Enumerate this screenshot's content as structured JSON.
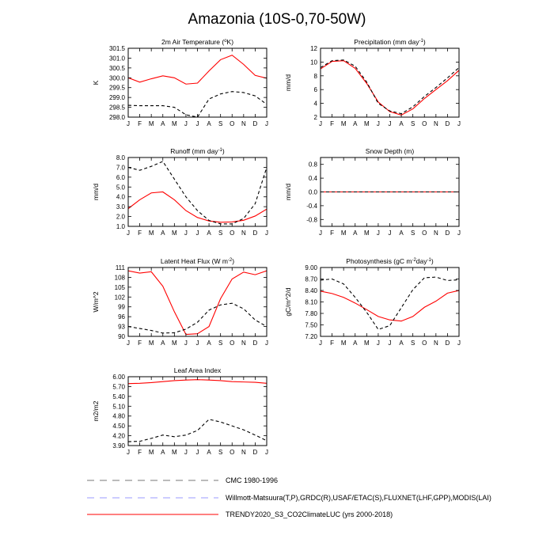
{
  "figure_title": "Amazonia (10S-0,70-50W)",
  "months": [
    "J",
    "F",
    "M",
    "A",
    "M",
    "J",
    "J",
    "A",
    "S",
    "O",
    "N",
    "D",
    "J"
  ],
  "colors": {
    "trendy": "#ff0000",
    "cmc": "#000000",
    "willmott": "#9999ff",
    "legend_cmc": "#777777"
  },
  "legend": [
    {
      "name": "cmc",
      "label": "CMC 1980-1996"
    },
    {
      "name": "willmott",
      "label": "Willmott-Matsuura(T,P),GRDC(R),USAF/ETAC(S),FLUXNET(LHF,GPP),MODIS(LAI)"
    },
    {
      "name": "trendy",
      "label": "TRENDY2020_S3_CO2ClimateLUC (yrs 2000-2018)"
    }
  ],
  "chart_data": [
    {
      "type": "line",
      "title_main": "2m Air Temperature (",
      "title_sup": "o",
      "title_tail": "K)",
      "ylabel": "K",
      "ylim": [
        298.0,
        301.5
      ],
      "yticks": [
        "298.0",
        "298.5",
        "299.0",
        "299.5",
        "300.0",
        "300.5",
        "301.0",
        "301.5"
      ],
      "series": [
        {
          "name": "TRENDY2020_S3_CO2ClimateLUC",
          "style": "trendy",
          "values": [
            300.0,
            299.78,
            299.95,
            300.1,
            300.0,
            299.68,
            299.73,
            300.35,
            300.92,
            301.15,
            300.68,
            300.12,
            299.98
          ]
        },
        {
          "name": "CMC 1980-1996",
          "style": "cmc",
          "values": [
            298.6,
            298.58,
            298.58,
            298.58,
            298.5,
            298.12,
            298.0,
            298.92,
            299.18,
            299.3,
            299.25,
            299.08,
            298.65
          ]
        }
      ]
    },
    {
      "type": "line",
      "title_main": "Precipitation (mm day",
      "title_sup": "-1",
      "title_tail": ")",
      "ylabel": "mm/d",
      "ylim": [
        2,
        12
      ],
      "yticks": [
        "2",
        "4",
        "6",
        "8",
        "10",
        "12"
      ],
      "series": [
        {
          "name": "TRENDY2020_S3_CO2ClimateLUC",
          "style": "trendy",
          "values": [
            9.0,
            10.1,
            10.2,
            9.1,
            6.9,
            4.2,
            2.8,
            2.3,
            3.2,
            4.7,
            6.0,
            7.3,
            8.8
          ]
        },
        {
          "name": "CMC 1980-1996",
          "style": "cmc",
          "values": [
            9.2,
            10.2,
            10.3,
            9.4,
            7.1,
            4.0,
            2.9,
            2.5,
            3.5,
            5.0,
            6.3,
            7.7,
            9.2
          ]
        }
      ]
    },
    {
      "type": "line",
      "title_main": "Runoff (mm day",
      "title_sup": "-1",
      "title_tail": ")",
      "ylabel": "mm/d",
      "ylim": [
        1.0,
        8.0
      ],
      "yticks": [
        "1.0",
        "2.0",
        "3.0",
        "4.0",
        "5.0",
        "6.0",
        "7.0",
        "8.0"
      ],
      "series": [
        {
          "name": "TRENDY2020_S3_CO2ClimateLUC",
          "style": "trendy",
          "values": [
            2.8,
            3.7,
            4.4,
            4.5,
            3.7,
            2.6,
            1.9,
            1.55,
            1.42,
            1.45,
            1.62,
            2.05,
            2.75
          ]
        },
        {
          "name": "CMC 1980-1996",
          "style": "cmc",
          "values": [
            7.0,
            6.7,
            7.1,
            7.6,
            5.8,
            4.0,
            2.6,
            1.6,
            1.25,
            1.25,
            1.8,
            3.3,
            7.0
          ]
        }
      ]
    },
    {
      "type": "line",
      "title_main": "Snow Depth (m)",
      "title_sup": "",
      "title_tail": "",
      "ylabel": "mm/d",
      "ylim": [
        -1.0,
        1.0
      ],
      "yticks": [
        "-0.8",
        "-0.4",
        "0.0",
        "0.4",
        "0.8"
      ],
      "series": [
        {
          "name": "TRENDY2020_S3_CO2ClimateLUC",
          "style": "trendy",
          "values": [
            0,
            0,
            0,
            0,
            0,
            0,
            0,
            0,
            0,
            0,
            0,
            0,
            0
          ]
        },
        {
          "name": "CMC 1980-1996",
          "style": "cmc",
          "values": [
            0,
            0,
            0,
            0,
            0,
            0,
            0,
            0,
            0,
            0,
            0,
            0,
            0
          ]
        }
      ]
    },
    {
      "type": "line",
      "title_main": "Latent Heat Flux (W m",
      "title_sup": "-2",
      "title_tail": ")",
      "ylabel": "W/m^2",
      "ylim": [
        90,
        111
      ],
      "yticks": [
        "90",
        "93",
        "96",
        "99",
        "102",
        "105",
        "108",
        "111"
      ],
      "series": [
        {
          "name": "TRENDY2020_S3_CO2ClimateLUC",
          "style": "trendy",
          "values": [
            110.0,
            109.3,
            109.7,
            105.3,
            97.5,
            90.6,
            90.8,
            93.0,
            101.5,
            107.5,
            109.6,
            108.8,
            110.0
          ]
        },
        {
          "name": "CMC 1980-1996",
          "style": "cmc",
          "values": [
            93.0,
            92.4,
            91.8,
            91.0,
            91.1,
            92.2,
            94.3,
            98.0,
            99.6,
            100.1,
            98.4,
            95.0,
            93.0
          ]
        }
      ]
    },
    {
      "type": "line",
      "title_main": "Photosynthesis (gC m",
      "title_sup": "-2",
      "title_tail": "day",
      "title_sup2": "-1",
      "title_tail2": ")",
      "ylabel": "gC/m^2/d",
      "ylim": [
        7.2,
        9.0
      ],
      "yticks": [
        "7.20",
        "7.50",
        "7.80",
        "8.10",
        "8.40",
        "8.70",
        "9.00"
      ],
      "series": [
        {
          "name": "TRENDY2020_S3_CO2ClimateLUC",
          "style": "trendy",
          "values": [
            8.38,
            8.32,
            8.22,
            8.07,
            7.9,
            7.72,
            7.63,
            7.6,
            7.72,
            7.96,
            8.12,
            8.33,
            8.4
          ]
        },
        {
          "name": "CMC 1980-1996",
          "style": "cmc",
          "values": [
            8.67,
            8.7,
            8.57,
            8.22,
            7.83,
            7.38,
            7.48,
            7.95,
            8.42,
            8.73,
            8.75,
            8.66,
            8.68
          ]
        }
      ]
    },
    {
      "type": "line",
      "title_main": "Leaf Area Index",
      "title_sup": "",
      "title_tail": "",
      "ylabel": "m2/m2",
      "ylim": [
        3.9,
        6.0
      ],
      "yticks": [
        "3.90",
        "4.20",
        "4.50",
        "4.80",
        "5.10",
        "5.40",
        "5.70",
        "6.00"
      ],
      "series": [
        {
          "name": "TRENDY2020_S3_CO2ClimateLUC",
          "style": "trendy",
          "values": [
            5.79,
            5.8,
            5.82,
            5.85,
            5.88,
            5.9,
            5.91,
            5.9,
            5.88,
            5.85,
            5.84,
            5.83,
            5.8
          ]
        },
        {
          "name": "CMC 1980-1996",
          "style": "cmc",
          "values": [
            4.02,
            4.03,
            4.12,
            4.22,
            4.17,
            4.22,
            4.36,
            4.7,
            4.62,
            4.5,
            4.38,
            4.22,
            4.05
          ]
        }
      ]
    }
  ]
}
